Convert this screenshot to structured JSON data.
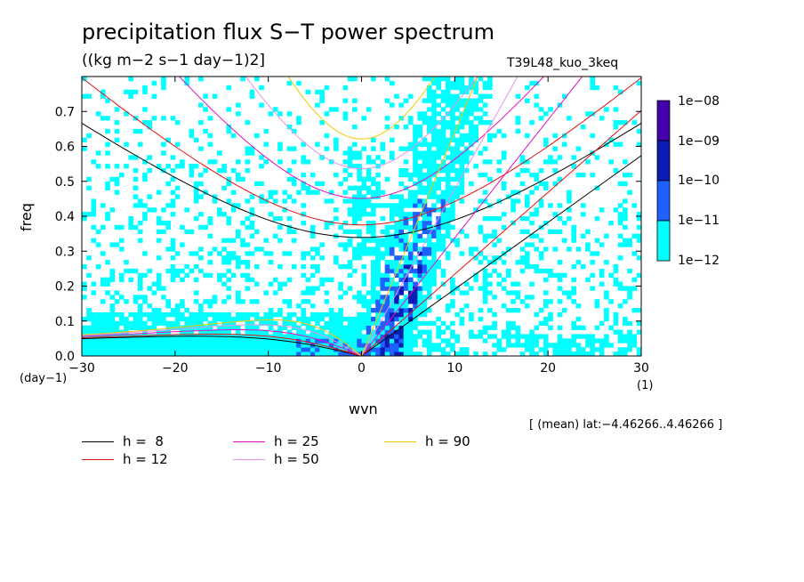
{
  "title": "precipitation flux S−T power spectrum",
  "units": "((kg m−2 s−1 day−1)2]",
  "run": "T39L48_kuo_3keq",
  "range_note": "[ (mean) lat:−4.46266..4.46266 ]",
  "chart_data": {
    "type": "heatmap",
    "xlabel": "wvn",
    "ylabel": "freq",
    "xunit": "(1)",
    "yunit": "(day−1)",
    "xlim": [
      -30,
      30
    ],
    "ylim": [
      0,
      0.8
    ],
    "xticks": [
      -30,
      -20,
      -10,
      0,
      10,
      20,
      30
    ],
    "xtick_labels": [
      "−30",
      "−20",
      "−10",
      "0",
      "10",
      "20",
      "30"
    ],
    "yticks": [
      0,
      0.1,
      0.2,
      0.3,
      0.4,
      0.5,
      0.6,
      0.7
    ],
    "ytick_labels": [
      "0.0",
      "0.1",
      "0.2",
      "0.3",
      "0.4",
      "0.5",
      "0.6",
      "0.7"
    ],
    "colorbar": {
      "labels": [
        "1e−08",
        "1e−09",
        "1e−10",
        "1e−11",
        "1e−12"
      ],
      "colors": [
        "#4400aa",
        "#0a1cb4",
        "#2060ff",
        "#00ffff"
      ]
    },
    "dispersion_curves": [
      {
        "label": "h =  8",
        "h": 8,
        "color": "#000000"
      },
      {
        "label": "h = 12",
        "h": 12,
        "color": "#e01010"
      },
      {
        "label": "h = 25",
        "h": 25,
        "color": "#e010c0"
      },
      {
        "label": "h = 50",
        "h": 50,
        "color": "#e890e8"
      },
      {
        "label": "h = 90",
        "h": 90,
        "color": "#f0c800"
      }
    ]
  }
}
